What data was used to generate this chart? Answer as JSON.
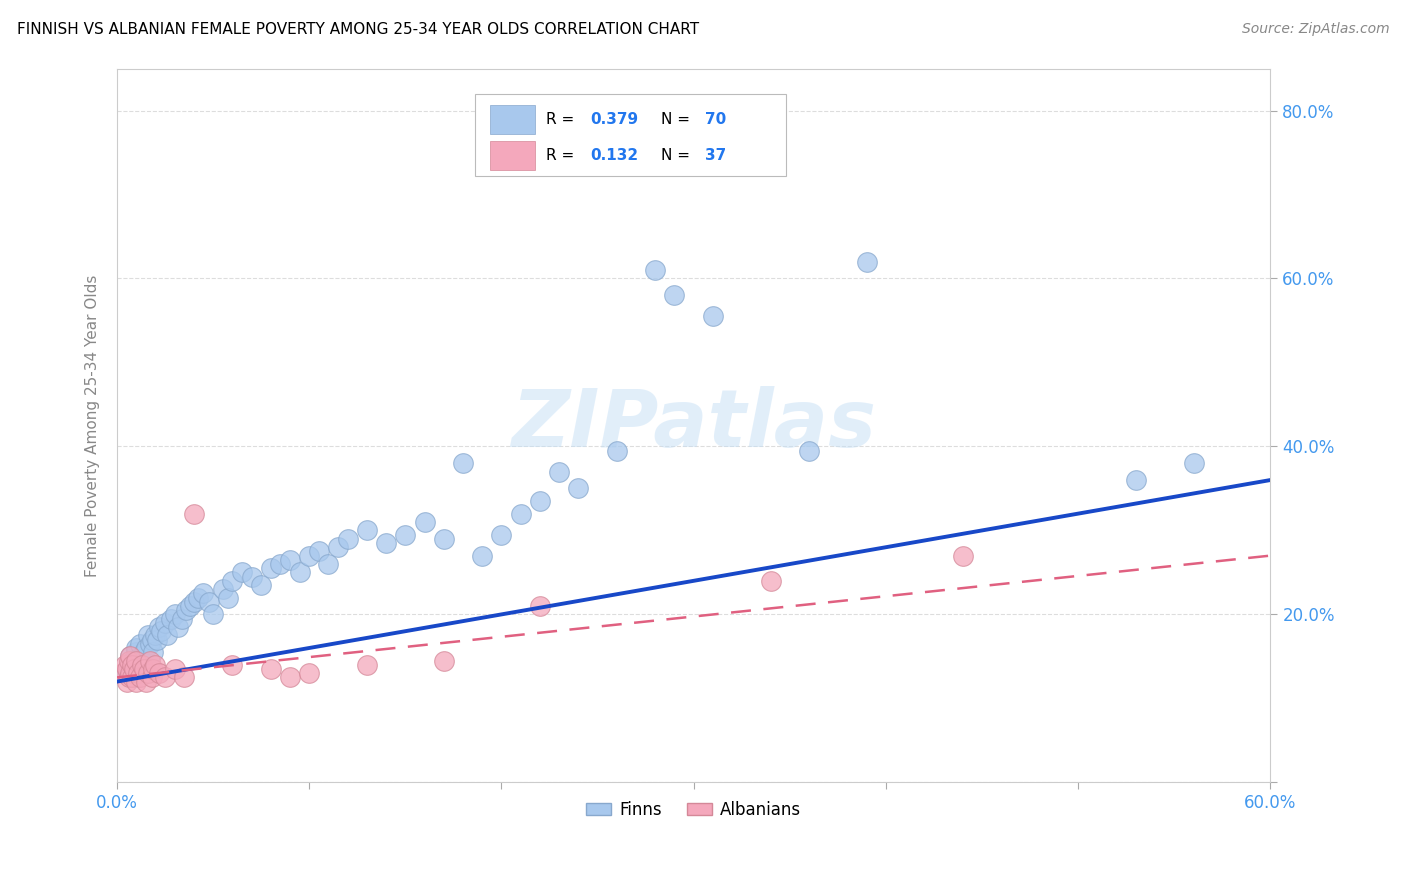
{
  "title": "FINNISH VS ALBANIAN FEMALE POVERTY AMONG 25-34 YEAR OLDS CORRELATION CHART",
  "source": "Source: ZipAtlas.com",
  "ylabel": "Female Poverty Among 25-34 Year Olds",
  "xlim": [
    0.0,
    0.6
  ],
  "ylim": [
    0.0,
    0.85
  ],
  "finn_color": "#A8C8ED",
  "finn_edge_color": "#88A8CD",
  "albanian_color": "#F4A8BC",
  "albanian_edge_color": "#D48898",
  "finn_line_color": "#1848C8",
  "albanian_line_color": "#E06080",
  "finn_R": "0.379",
  "finn_N": "70",
  "albanian_R": "0.132",
  "albanian_N": "37",
  "watermark_text": "ZIPatlas",
  "legend_color": "#2277EE",
  "tick_color": "#4499EE",
  "grid_color": "#dddddd",
  "axis_color": "#cccccc",
  "ylabel_color": "#888888",
  "finns_x": [
    0.005,
    0.007,
    0.008,
    0.008,
    0.009,
    0.01,
    0.01,
    0.01,
    0.011,
    0.012,
    0.012,
    0.013,
    0.014,
    0.015,
    0.016,
    0.017,
    0.018,
    0.019,
    0.02,
    0.021,
    0.022,
    0.023,
    0.025,
    0.026,
    0.028,
    0.03,
    0.032,
    0.034,
    0.036,
    0.038,
    0.04,
    0.042,
    0.045,
    0.048,
    0.05,
    0.055,
    0.058,
    0.06,
    0.065,
    0.07,
    0.075,
    0.08,
    0.085,
    0.09,
    0.095,
    0.1,
    0.105,
    0.11,
    0.115,
    0.12,
    0.13,
    0.14,
    0.15,
    0.16,
    0.17,
    0.18,
    0.19,
    0.2,
    0.21,
    0.22,
    0.23,
    0.24,
    0.26,
    0.28,
    0.29,
    0.31,
    0.36,
    0.39,
    0.53,
    0.56
  ],
  "finns_y": [
    0.13,
    0.15,
    0.135,
    0.145,
    0.14,
    0.125,
    0.155,
    0.16,
    0.145,
    0.15,
    0.165,
    0.14,
    0.155,
    0.16,
    0.175,
    0.165,
    0.17,
    0.155,
    0.175,
    0.17,
    0.185,
    0.18,
    0.19,
    0.175,
    0.195,
    0.2,
    0.185,
    0.195,
    0.205,
    0.21,
    0.215,
    0.22,
    0.225,
    0.215,
    0.2,
    0.23,
    0.22,
    0.24,
    0.25,
    0.245,
    0.235,
    0.255,
    0.26,
    0.265,
    0.25,
    0.27,
    0.275,
    0.26,
    0.28,
    0.29,
    0.3,
    0.285,
    0.295,
    0.31,
    0.29,
    0.38,
    0.27,
    0.295,
    0.32,
    0.335,
    0.37,
    0.35,
    0.395,
    0.61,
    0.58,
    0.555,
    0.395,
    0.62,
    0.36,
    0.38
  ],
  "albanians_x": [
    0.003,
    0.004,
    0.005,
    0.005,
    0.006,
    0.006,
    0.007,
    0.007,
    0.008,
    0.008,
    0.009,
    0.01,
    0.01,
    0.011,
    0.012,
    0.013,
    0.014,
    0.015,
    0.016,
    0.017,
    0.018,
    0.019,
    0.02,
    0.022,
    0.025,
    0.03,
    0.035,
    0.04,
    0.06,
    0.08,
    0.09,
    0.1,
    0.13,
    0.17,
    0.22,
    0.34,
    0.44
  ],
  "albanians_y": [
    0.13,
    0.14,
    0.12,
    0.135,
    0.125,
    0.145,
    0.13,
    0.15,
    0.125,
    0.14,
    0.135,
    0.12,
    0.145,
    0.13,
    0.125,
    0.14,
    0.135,
    0.12,
    0.13,
    0.145,
    0.125,
    0.135,
    0.14,
    0.13,
    0.125,
    0.135,
    0.125,
    0.32,
    0.14,
    0.135,
    0.125,
    0.13,
    0.14,
    0.145,
    0.21,
    0.24,
    0.27
  ]
}
